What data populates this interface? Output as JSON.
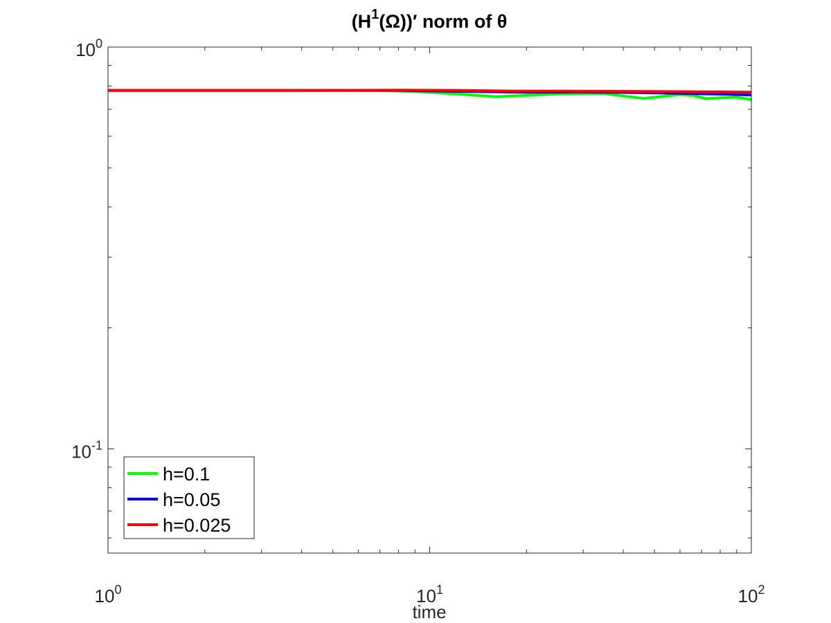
{
  "chart_data": {
    "type": "line",
    "title": {
      "pre": "(H",
      "sup": "1",
      "post": "(Ω))′ norm of θ"
    },
    "xlabel": "time",
    "ylabel": "",
    "xscale": "log",
    "yscale": "log",
    "xlim": [
      1,
      100
    ],
    "ylim": [
      0.055,
      1
    ],
    "grid": false,
    "legend_position": "bottom-left",
    "xticks": [
      {
        "value": 1,
        "base": "10",
        "exp": "0"
      },
      {
        "value": 10,
        "base": "10",
        "exp": "1"
      },
      {
        "value": 100,
        "base": "10",
        "exp": "2"
      }
    ],
    "yticks": [
      {
        "value": 0.1,
        "base": "10",
        "exp": "-1"
      },
      {
        "value": 1,
        "base": "10",
        "exp": "0"
      }
    ],
    "series": [
      {
        "name": "h=0.1",
        "color": "#00ff00",
        "points": [
          [
            1,
            0.78
          ],
          [
            2,
            0.78
          ],
          [
            4,
            0.78
          ],
          [
            7,
            0.779
          ],
          [
            9,
            0.775
          ],
          [
            12,
            0.765
          ],
          [
            16,
            0.752
          ],
          [
            20,
            0.758
          ],
          [
            25,
            0.764
          ],
          [
            30,
            0.766
          ],
          [
            35,
            0.766
          ],
          [
            40,
            0.755
          ],
          [
            46,
            0.745
          ],
          [
            52,
            0.752
          ],
          [
            60,
            0.762
          ],
          [
            66,
            0.757
          ],
          [
            72,
            0.744
          ],
          [
            80,
            0.748
          ],
          [
            90,
            0.75
          ],
          [
            100,
            0.74
          ]
        ]
      },
      {
        "name": "h=0.05",
        "color": "#0000ff",
        "points": [
          [
            1,
            0.78
          ],
          [
            4,
            0.78
          ],
          [
            8,
            0.78
          ],
          [
            12,
            0.776
          ],
          [
            20,
            0.772
          ],
          [
            30,
            0.773
          ],
          [
            40,
            0.771
          ],
          [
            55,
            0.768
          ],
          [
            70,
            0.765
          ],
          [
            85,
            0.763
          ],
          [
            100,
            0.76
          ]
        ]
      },
      {
        "name": "h=0.025",
        "color": "#ff0000",
        "points": [
          [
            1,
            0.78
          ],
          [
            4,
            0.78
          ],
          [
            8,
            0.781
          ],
          [
            12,
            0.78
          ],
          [
            18,
            0.777
          ],
          [
            25,
            0.777
          ],
          [
            35,
            0.776
          ],
          [
            50,
            0.775
          ],
          [
            65,
            0.774
          ],
          [
            80,
            0.773
          ],
          [
            100,
            0.772
          ]
        ]
      }
    ]
  }
}
